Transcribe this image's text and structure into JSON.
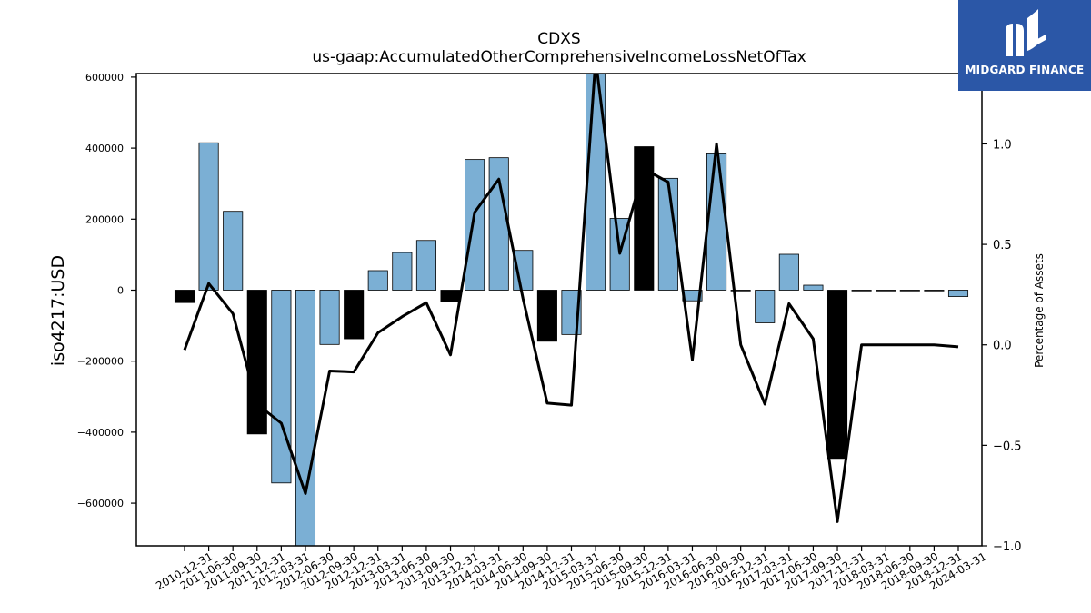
{
  "chart_data": {
    "type": "bar",
    "title": "CDXS",
    "subtitle": "us-gaap:AccumulatedOtherComprehensiveIncomeLossNetOfTax",
    "xlabel": "",
    "ylabel": "iso4217:USD",
    "y2label": "Percentage of Assets",
    "ylim": [
      -720000,
      610000
    ],
    "y2lim": [
      -1.0,
      1.35
    ],
    "yticks": [
      -600000,
      -400000,
      -200000,
      0,
      200000,
      400000,
      600000
    ],
    "y2ticks": [
      -1.0,
      -0.5,
      0.0,
      0.5,
      1.0
    ],
    "categories": [
      "2010-12-31",
      "2011-06-30",
      "2011-09-30",
      "2011-12-31",
      "2012-03-31",
      "2012-06-30",
      "2012-09-30",
      "2012-12-31",
      "2013-03-31",
      "2013-06-30",
      "2013-09-30",
      "2013-12-31",
      "2014-03-31",
      "2014-06-30",
      "2014-09-30",
      "2014-12-31",
      "2015-03-31",
      "2015-06-30",
      "2015-09-30",
      "2015-12-31",
      "2016-03-31",
      "2016-06-30",
      "2016-09-30",
      "2016-12-31",
      "2017-03-31",
      "2017-06-30",
      "2017-09-30",
      "2017-12-31",
      "2018-03-31",
      "2018-06-30",
      "2018-09-30",
      "2018-12-31",
      "2024-03-31"
    ],
    "series": [
      {
        "kind": "bar",
        "values": [
          -35000,
          415000,
          222000,
          -405000,
          -543000,
          -740000,
          -153000,
          -137000,
          55000,
          106000,
          140000,
          -32000,
          368000,
          373000,
          112000,
          -144000,
          -125000,
          640000,
          202000,
          404000,
          315000,
          -30000,
          384000,
          0,
          -92000,
          101000,
          14000,
          -474000,
          0,
          0,
          0,
          0,
          -18000
        ],
        "colors": [
          "#000000",
          "#7bafd4",
          "#7bafd4",
          "#000000",
          "#7bafd4",
          "#7bafd4",
          "#7bafd4",
          "#000000",
          "#7bafd4",
          "#7bafd4",
          "#7bafd4",
          "#000000",
          "#7bafd4",
          "#7bafd4",
          "#7bafd4",
          "#000000",
          "#7bafd4",
          "#7bafd4",
          "#7bafd4",
          "#000000",
          "#7bafd4",
          "#7bafd4",
          "#7bafd4",
          "#000000",
          "#7bafd4",
          "#7bafd4",
          "#7bafd4",
          "#000000",
          "#7bafd4",
          "#7bafd4",
          "#7bafd4",
          "#000000",
          "#7bafd4"
        ]
      },
      {
        "kind": "line",
        "axis": "y2",
        "values": [
          -0.025,
          0.305,
          0.155,
          -0.295,
          -0.39,
          -0.74,
          -0.13,
          -0.135,
          0.06,
          0.14,
          0.21,
          -0.05,
          0.66,
          0.825,
          0.23,
          -0.29,
          -0.3,
          1.42,
          0.455,
          0.875,
          0.81,
          -0.075,
          1.0,
          0.0,
          -0.295,
          0.205,
          0.03,
          -0.88,
          0.0,
          0.0,
          0.0,
          0.0,
          -0.01
        ]
      }
    ],
    "grid": false,
    "legend": "none"
  },
  "logo": {
    "text": "MIDGARD FINANCE",
    "icon": "midgard-logo-icon",
    "background": "#2b57a7"
  }
}
